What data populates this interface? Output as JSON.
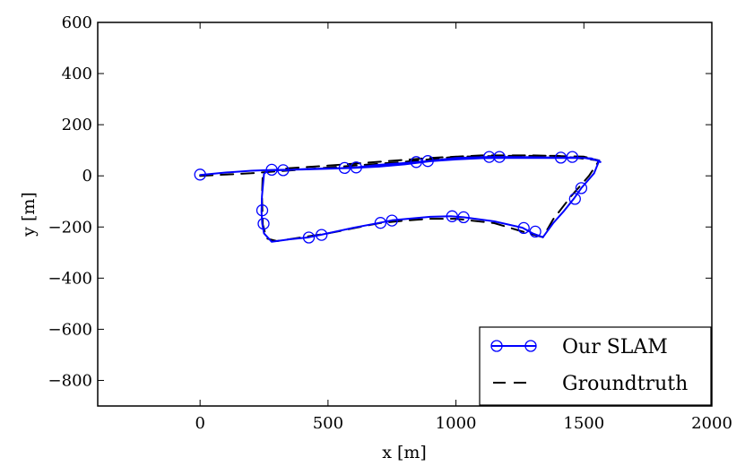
{
  "chart_data": {
    "type": "line",
    "xlabel": "x [m]",
    "ylabel": "y [m]",
    "xlim": [
      -400,
      2000
    ],
    "ylim": [
      -900,
      600
    ],
    "xticks": [
      "0",
      "500",
      "1000",
      "1500",
      "2000"
    ],
    "xtick_values": [
      0,
      500,
      1000,
      1500,
      2000
    ],
    "yticks": [
      "600",
      "400",
      "200",
      "0",
      "−200",
      "−400",
      "−600",
      "−800"
    ],
    "ytick_values": [
      600,
      400,
      200,
      0,
      -200,
      -400,
      -600,
      -800
    ],
    "grid": false,
    "legend_position": "bottom-right",
    "series": [
      {
        "name": "Our SLAM",
        "color": "#0000ff",
        "style": "solid",
        "marker": "circle",
        "x": [
          0,
          100,
          200,
          280,
          400,
          500,
          600,
          700,
          800,
          900,
          1000,
          1100,
          1200,
          1300,
          1400,
          1500,
          1560,
          1540,
          1490,
          1460,
          1420,
          1380,
          1340,
          1300,
          1260,
          1150,
          1030,
          980,
          900,
          750,
          700,
          600,
          470,
          420,
          350,
          280,
          250,
          243,
          240,
          242,
          250,
          265,
          300,
          330,
          400,
          500,
          565,
          610,
          700,
          800,
          850,
          890,
          1000,
          1130,
          1170,
          1300,
          1400,
          1460,
          1530,
          1565
        ],
        "y": [
          3,
          13,
          20,
          23,
          25,
          28,
          31,
          36,
          45,
          57,
          64,
          69,
          70,
          70,
          70,
          70,
          60,
          10,
          -48,
          -90,
          -140,
          -185,
          -240,
          -225,
          -203,
          -178,
          -162,
          -158,
          -160,
          -174,
          -184,
          -203,
          -231,
          -241,
          -248,
          -258,
          -225,
          -187,
          -140,
          -80,
          8,
          20,
          22,
          22,
          26,
          29,
          31,
          33,
          43,
          50,
          54,
          58,
          70,
          74,
          74,
          73,
          71,
          72,
          68,
          54
        ]
      },
      {
        "name": "Groundtruth",
        "color": "#000000",
        "style": "dashed",
        "marker": "none",
        "x": [
          0,
          200,
          400,
          600,
          800,
          1000,
          1200,
          1400,
          1560,
          1520,
          1450,
          1380,
          1340,
          1250,
          1150,
          1000,
          900,
          800,
          700,
          600,
          500,
          400,
          300,
          260,
          245,
          242,
          245,
          270,
          350,
          500,
          700,
          900,
          1100,
          1300,
          1500,
          1560
        ],
        "y": [
          0,
          10,
          25,
          40,
          55,
          75,
          78,
          78,
          60,
          0,
          -80,
          -170,
          -240,
          -215,
          -185,
          -168,
          -168,
          -175,
          -185,
          -205,
          -225,
          -240,
          -255,
          -245,
          -190,
          -80,
          10,
          20,
          30,
          40,
          55,
          70,
          80,
          80,
          75,
          60
        ]
      }
    ],
    "marker_points": {
      "x": [
        0,
        280,
        325,
        565,
        610,
        845,
        890,
        1130,
        1170,
        1410,
        1455,
        1490,
        1465,
        1310,
        1265,
        1030,
        985,
        750,
        705,
        475,
        425,
        248,
        243
      ],
      "y": [
        5,
        24,
        22,
        31,
        33,
        54,
        58,
        74,
        74,
        71,
        74,
        -48,
        -90,
        -218,
        -204,
        -162,
        -158,
        -175,
        -184,
        -231,
        -241,
        -187,
        -135
      ]
    }
  }
}
